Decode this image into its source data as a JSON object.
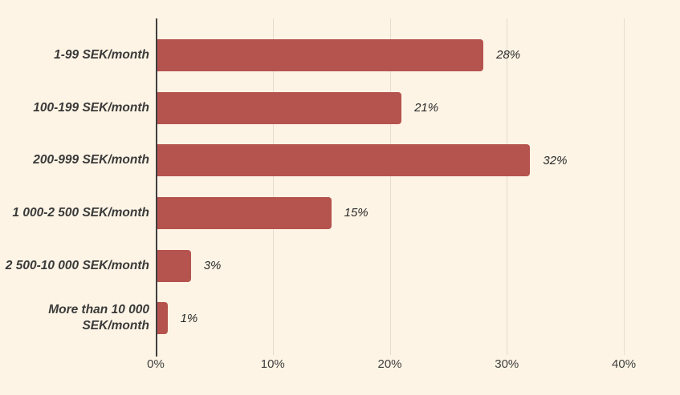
{
  "chart_data": {
    "type": "bar",
    "orientation": "horizontal",
    "title": "",
    "xlabel": "",
    "ylabel": "",
    "categories": [
      "1-99 SEK/month",
      "100-199 SEK/month",
      "200-999 SEK/month",
      "1 000-2 500 SEK/month",
      "2 500-10 000 SEK/month",
      "More than 10 000 SEK/month"
    ],
    "values": [
      28,
      21,
      32,
      15,
      3,
      1
    ],
    "value_labels": [
      "28%",
      "21%",
      "32%",
      "15%",
      "3%",
      "1%"
    ],
    "xlim": [
      0,
      44.8
    ],
    "xticks": [
      {
        "label": "0%",
        "value": 0
      },
      {
        "label": "10%",
        "value": 10
      },
      {
        "label": "20%",
        "value": 20
      },
      {
        "label": "30%",
        "value": 30
      },
      {
        "label": "40%",
        "value": 40
      }
    ],
    "grid": true,
    "legend": false,
    "colors": {
      "background": "#FDF4E5",
      "bar": "#B5534E",
      "gridline": "#E3DDD1",
      "axis": "#3F3F3F",
      "category_text": "#3A3A3A",
      "value_text": "#2B2B2B",
      "tick_text": "#3D3D3D"
    }
  }
}
